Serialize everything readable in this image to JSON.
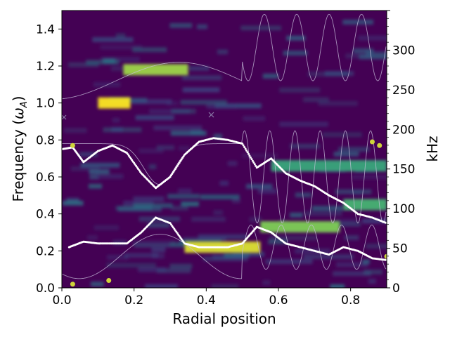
{
  "chart_data": {
    "type": "heatmap",
    "title": "",
    "xlabel": "Radial position",
    "ylabel": "Frequency (ω_A)",
    "ylabel_parts": [
      "Frequency (",
      "ω",
      "A",
      ")"
    ],
    "y2label": "kHz",
    "xlim": [
      0.0,
      0.9
    ],
    "ylim": [
      0.0,
      1.5
    ],
    "y2lim": [
      0,
      350
    ],
    "x_ticks": [
      0.0,
      0.2,
      0.4,
      0.6,
      0.8
    ],
    "x_tick_labels": [
      "0.0",
      "0.2",
      "0.4",
      "0.6",
      "0.8"
    ],
    "y_ticks": [
      0.0,
      0.2,
      0.4,
      0.6,
      0.8,
      1.0,
      1.2,
      1.4
    ],
    "y_tick_labels": [
      "0.0",
      "0.2",
      "0.4",
      "0.6",
      "0.8",
      "1.0",
      "1.2",
      "1.4"
    ],
    "y2_ticks": [
      0,
      50,
      100,
      150,
      200,
      250,
      300
    ],
    "y2_tick_labels": [
      "0",
      "50",
      "100",
      "150",
      "200",
      "250",
      "300"
    ],
    "colormap": "viridis",
    "colors": {
      "background": "#440154",
      "continuum_points": "#ffffff",
      "gap_marks": "#cfd43a",
      "continuum_lines": "#c8c0dc",
      "cross_marker": "#8a7aa8"
    },
    "hot_spots": [
      {
        "x": [
          0.1,
          0.19
        ],
        "y": 1.0,
        "intensity": 1.0
      },
      {
        "x": [
          0.17,
          0.35
        ],
        "y": 1.18,
        "intensity": 0.85
      },
      {
        "x": [
          0.34,
          0.55
        ],
        "y": 0.22,
        "intensity": 0.95
      },
      {
        "x": [
          0.55,
          0.77
        ],
        "y": 0.33,
        "intensity": 0.8
      },
      {
        "x": [
          0.58,
          0.9
        ],
        "y": 0.66,
        "intensity": 0.6
      },
      {
        "x": [
          0.78,
          0.9
        ],
        "y": 0.45,
        "intensity": 0.65
      }
    ],
    "continuum_series": [
      {
        "x": [
          0.0,
          0.03,
          0.06,
          0.1,
          0.14,
          0.18,
          0.22,
          0.26,
          0.3,
          0.34,
          0.38,
          0.42,
          0.46,
          0.5,
          0.54,
          0.58,
          0.62,
          0.66,
          0.7,
          0.74,
          0.78,
          0.82,
          0.86,
          0.9
        ],
        "y": [
          0.75,
          0.76,
          0.68,
          0.74,
          0.77,
          0.73,
          0.62,
          0.54,
          0.6,
          0.72,
          0.79,
          0.81,
          0.8,
          0.78,
          0.65,
          0.7,
          0.62,
          0.58,
          0.55,
          0.5,
          0.46,
          0.4,
          0.38,
          0.35
        ]
      },
      {
        "x": [
          0.02,
          0.06,
          0.1,
          0.14,
          0.18,
          0.22,
          0.26,
          0.3,
          0.34,
          0.38,
          0.42,
          0.46,
          0.5,
          0.54,
          0.58,
          0.62,
          0.66,
          0.7,
          0.74,
          0.78,
          0.82,
          0.86,
          0.9
        ],
        "y": [
          0.22,
          0.25,
          0.24,
          0.24,
          0.24,
          0.3,
          0.38,
          0.35,
          0.24,
          0.22,
          0.22,
          0.22,
          0.24,
          0.33,
          0.3,
          0.24,
          0.22,
          0.2,
          0.18,
          0.22,
          0.2,
          0.16,
          0.15
        ]
      }
    ],
    "gap_marks": [
      {
        "x": 0.03,
        "y": 0.77
      },
      {
        "x": 0.03,
        "y": 0.02
      },
      {
        "x": 0.13,
        "y": 0.04
      },
      {
        "x": 0.86,
        "y": 0.79
      },
      {
        "x": 0.88,
        "y": 0.77
      },
      {
        "x": 0.9,
        "y": 0.17
      }
    ]
  }
}
